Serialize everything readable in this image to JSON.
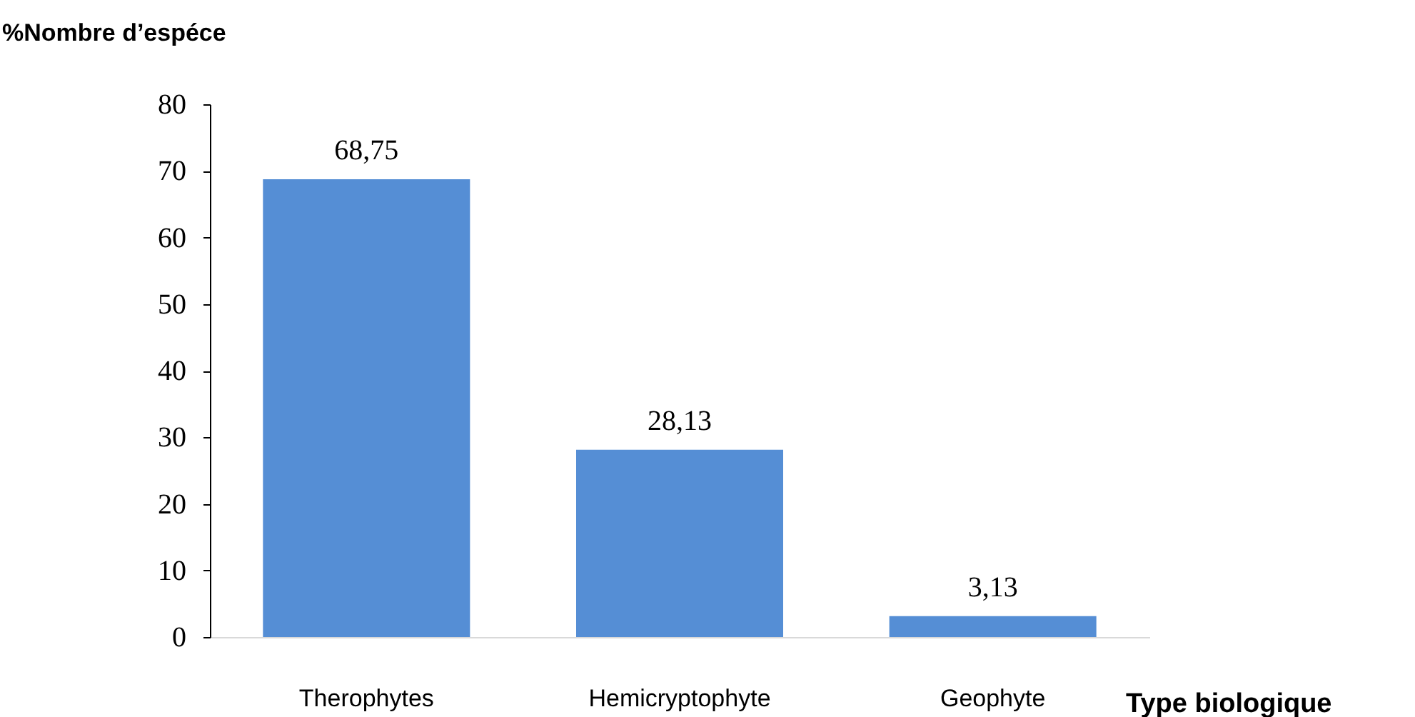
{
  "chart_data": {
    "type": "bar",
    "ylabel": "%Nombre d’espéce",
    "xlabel": "Type biologique",
    "categories": [
      "Therophytes",
      "Hemicryptophyte",
      "Geophyte"
    ],
    "values": [
      68.75,
      28.13,
      3.13
    ],
    "value_labels": [
      "68,75",
      "28,13",
      "3,13"
    ],
    "color": "#558ed5",
    "ylim": [
      0,
      80
    ],
    "yticks": [
      0,
      10,
      20,
      30,
      40,
      50,
      60,
      70,
      80
    ],
    "grid": false
  }
}
